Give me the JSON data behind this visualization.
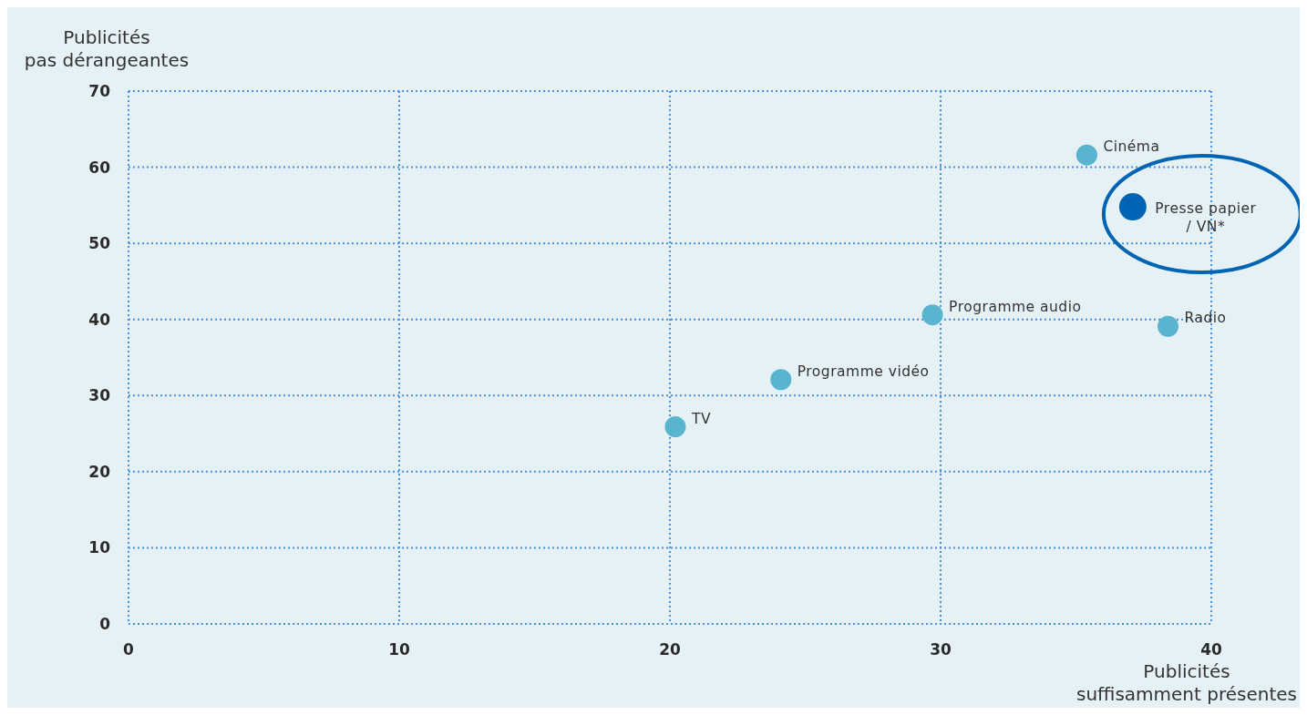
{
  "chart_data": {
    "type": "bubble",
    "sizes": [
      0.59,
      1,
      0.59,
      0.59,
      0.59,
      0.59
    ],
    "xlabel": "Publicités\nsuffisamment présentes",
    "ylabel": "Publicités\npas dérangeantes",
    "x": [
      35.4,
      37.1,
      29.7,
      38.4,
      24.1,
      20.2
    ],
    "values": [
      61.6,
      54.8,
      40.6,
      39.1,
      32.1,
      25.9
    ],
    "colors": [
      "#58b4cf",
      "#0064b4",
      "#58b4cf",
      "#58b4cf",
      "#58b4cf",
      "#58b4cf"
    ],
    "xlim": [
      0,
      40
    ],
    "xticks": [
      0,
      10,
      20,
      30,
      40
    ],
    "ylim": [
      0,
      70
    ],
    "yticks": [
      0,
      10,
      20,
      30,
      40,
      50,
      60,
      70
    ],
    "grid": true,
    "marker": "circle",
    "annotations": [
      {
        "text": "Cinéma",
        "x": 35.4,
        "y": 61.6
      },
      {
        "text": "Presse papier\n/ VN*",
        "x": 37.1,
        "y": 54.8
      },
      {
        "text": "Programme audio",
        "x": 29.7,
        "y": 40.6
      },
      {
        "text": "Radio",
        "x": 38.4,
        "y": 39.1
      },
      {
        "text": "Programme vidéo",
        "x": 24.1,
        "y": 32.1
      },
      {
        "text": "TV",
        "x": 20.2,
        "y": 25.9
      }
    ]
  }
}
